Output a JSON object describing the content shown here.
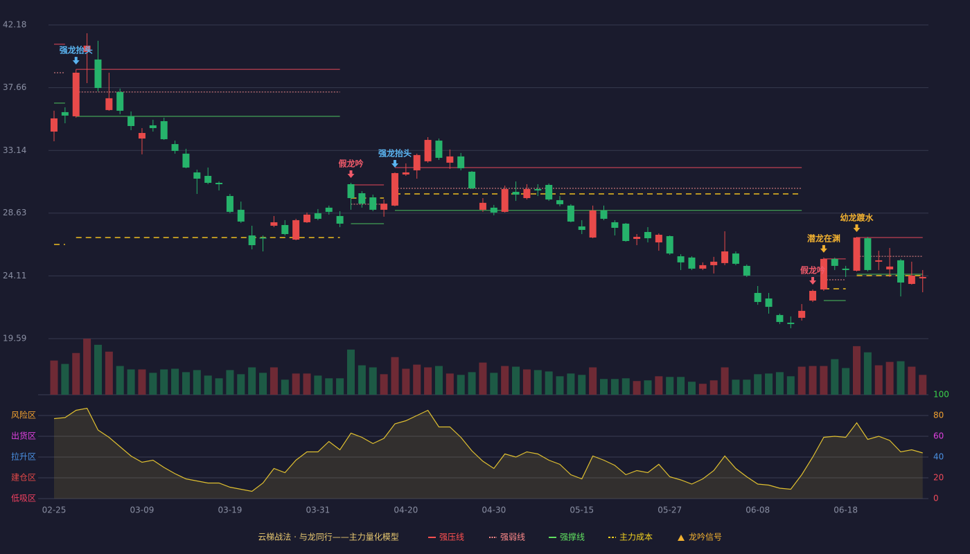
{
  "chart_data": {
    "type": "candlestick",
    "categories": [
      "02-25",
      null,
      null,
      null,
      null,
      null,
      null,
      null,
      "03-09",
      null,
      null,
      null,
      null,
      null,
      null,
      null,
      "03-19",
      null,
      null,
      null,
      null,
      null,
      null,
      null,
      "03-31",
      null,
      null,
      null,
      null,
      null,
      null,
      null,
      "04-20",
      null,
      null,
      null,
      null,
      null,
      null,
      null,
      "04-30",
      null,
      null,
      null,
      null,
      null,
      null,
      null,
      "05-15",
      null,
      null,
      null,
      null,
      null,
      null,
      null,
      "05-27",
      null,
      null,
      null,
      null,
      null,
      null,
      null,
      "06-08",
      null,
      null,
      null,
      null,
      null,
      null,
      null,
      "06-18",
      null,
      null,
      null,
      null,
      null,
      null,
      null
    ],
    "open": [
      34.5,
      35.9,
      35.6,
      40.24,
      39.69,
      36.05,
      37.35,
      35.6,
      34.0,
      34.95,
      35.25,
      33.6,
      32.91,
      31.56,
      31.31,
      30.81,
      29.86,
      28.87,
      27.02,
      26.87,
      27.72,
      27.77,
      26.72,
      27.97,
      28.62,
      29.02,
      28.42,
      30.71,
      30.06,
      29.76,
      28.87,
      29.17,
      31.41,
      31.71,
      32.36,
      33.85,
      32.26,
      32.71,
      31.61,
      28.87,
      29.02,
      28.72,
      30.16,
      29.71,
      30.36,
      30.66,
      29.56,
      29.17,
      27.67,
      26.87,
      28.82,
      27.97,
      27.87,
      26.77,
      27.27,
      26.52,
      26.97,
      25.52,
      25.43,
      24.63,
      24.88,
      25.03,
      25.72,
      24.83,
      22.88,
      22.48,
      21.29,
      20.74,
      21.09,
      22.33,
      23.13,
      25.33,
      24.63,
      24.48,
      26.82,
      25.13,
      24.58,
      25.23,
      23.53,
      23.93
    ],
    "high": [
      36.0,
      36.25,
      38.98,
      41.58,
      41.04,
      38.74,
      37.6,
      35.95,
      34.75,
      35.35,
      35.5,
      33.85,
      33.26,
      31.76,
      31.91,
      30.91,
      30.01,
      29.46,
      27.72,
      27.02,
      28.42,
      28.12,
      28.22,
      28.67,
      28.92,
      29.17,
      28.77,
      30.81,
      30.21,
      29.96,
      29.61,
      31.56,
      32.21,
      32.91,
      34.1,
      34.0,
      33.21,
      32.96,
      31.66,
      29.71,
      29.22,
      30.61,
      30.91,
      30.71,
      30.71,
      30.76,
      29.86,
      29.27,
      28.12,
      29.17,
      29.17,
      28.12,
      27.92,
      27.12,
      27.62,
      27.17,
      27.02,
      25.67,
      25.52,
      25.08,
      25.48,
      27.32,
      25.87,
      24.93,
      23.38,
      22.88,
      21.39,
      21.19,
      22.08,
      23.13,
      25.43,
      25.43,
      24.83,
      26.92,
      26.92,
      25.92,
      26.12,
      25.33,
      25.13,
      24.53
    ],
    "low": [
      33.8,
      35.1,
      35.5,
      37.99,
      37.4,
      36.0,
      35.75,
      34.6,
      32.86,
      34.5,
      33.9,
      32.91,
      31.86,
      30.01,
      30.71,
      30.26,
      28.62,
      27.92,
      26.02,
      25.87,
      27.62,
      27.02,
      26.67,
      27.92,
      28.12,
      28.52,
      27.62,
      28.87,
      29.02,
      28.77,
      28.37,
      29.12,
      31.31,
      31.11,
      32.26,
      32.46,
      31.81,
      31.71,
      30.36,
      28.72,
      28.47,
      28.67,
      29.51,
      29.61,
      29.86,
      29.51,
      29.12,
      27.97,
      27.12,
      26.82,
      28.12,
      27.02,
      26.57,
      26.32,
      26.52,
      25.92,
      25.62,
      24.53,
      24.53,
      24.53,
      24.28,
      24.88,
      24.88,
      24.03,
      22.03,
      21.39,
      20.64,
      20.34,
      20.89,
      22.23,
      23.03,
      24.53,
      24.03,
      24.43,
      24.43,
      24.53,
      24.03,
      22.63,
      23.48,
      22.93
    ],
    "close": [
      35.45,
      35.65,
      38.74,
      40.69,
      37.64,
      36.9,
      36.0,
      34.9,
      34.4,
      34.75,
      33.95,
      33.11,
      31.91,
      31.11,
      30.81,
      30.71,
      28.72,
      28.02,
      26.32,
      26.82,
      27.97,
      27.12,
      28.12,
      28.52,
      28.22,
      28.72,
      27.87,
      29.71,
      29.31,
      28.87,
      29.31,
      31.51,
      31.56,
      32.81,
      33.9,
      32.61,
      32.71,
      31.86,
      30.41,
      29.37,
      28.67,
      30.36,
      29.96,
      30.36,
      30.26,
      29.61,
      29.27,
      28.02,
      27.42,
      28.82,
      28.22,
      27.57,
      26.62,
      26.92,
      26.82,
      27.07,
      25.72,
      25.08,
      24.63,
      24.88,
      25.13,
      25.87,
      24.98,
      24.13,
      22.23,
      21.88,
      20.79,
      20.64,
      21.59,
      23.03,
      25.33,
      24.83,
      24.53,
      26.87,
      24.53,
      25.23,
      24.78,
      23.63,
      24.13,
      24.03
    ],
    "ylim": [
      19.59,
      42.18
    ],
    "yticks": [
      19.59,
      24.11,
      28.63,
      33.14,
      37.66,
      42.18
    ],
    "grid": true,
    "up_color": "#e84a4a",
    "down_color": "#26b36b",
    "volume": [
      50,
      45,
      61,
      82,
      73,
      63,
      42,
      37,
      37,
      32,
      37,
      38,
      33,
      36,
      28,
      24,
      36,
      30,
      40,
      32,
      40,
      22,
      31,
      31,
      28,
      24,
      24,
      66,
      43,
      40,
      30,
      55,
      38,
      44,
      40,
      42,
      31,
      29,
      33,
      47,
      32,
      42,
      41,
      37,
      36,
      34,
      27,
      31,
      29,
      40,
      23,
      23,
      24,
      20,
      21,
      27,
      26,
      26,
      19,
      16,
      21,
      40,
      22,
      22,
      30,
      31,
      33,
      27,
      41,
      42,
      42,
      52,
      39,
      71,
      62,
      43,
      48,
      49,
      41,
      29
    ],
    "volume_up_color": "#6e2a35",
    "volume_down_color": "#1d5a45",
    "levels": [
      {
        "start": 0,
        "end": 1,
        "resistance": 40.79,
        "weak": 38.74,
        "support": 36.55,
        "cost": 26.37
      },
      {
        "start": 2,
        "end": 26,
        "resistance": 38.98,
        "weak": 37.35,
        "support": 35.6,
        "cost": 26.87
      },
      {
        "start": 27,
        "end": 30,
        "resistance": 30.66,
        "weak": 29.27,
        "support": 27.87,
        "cost": 29.71
      },
      {
        "start": 31,
        "end": 68,
        "resistance": 31.91,
        "weak": 30.41,
        "support": 28.82,
        "cost": 30.01
      },
      {
        "start": 70,
        "end": 72,
        "resistance": 25.33,
        "weak": 23.83,
        "support": 22.33,
        "cost": 23.18
      },
      {
        "start": 73,
        "end": 79,
        "resistance": 26.87,
        "weak": 25.52,
        "support": 24.23,
        "cost": 24.13
      }
    ],
    "level_colors": {
      "resistance": "#e84a5a",
      "weak": "#f08a8a",
      "support": "#4cc35e",
      "cost": "#f0c020"
    },
    "signals": [
      {
        "index": 2,
        "label": "强龙抬头",
        "color": "#5ab4f0"
      },
      {
        "index": 27,
        "label": "假龙吟",
        "color": "#f05a6a"
      },
      {
        "index": 31,
        "label": "强龙抬头",
        "color": "#5ab4f0"
      },
      {
        "index": 69,
        "label": "假龙吟",
        "color": "#f05a6a"
      },
      {
        "index": 70,
        "label": "潜龙在渊",
        "color": "#f0b030"
      },
      {
        "index": 73,
        "label": "幼龙踱水",
        "color": "#f0b030"
      }
    ],
    "oscillator": {
      "values": [
        77,
        78,
        85,
        87,
        66,
        59,
        50,
        41,
        35,
        37,
        30,
        24,
        19,
        17,
        15,
        15,
        11,
        9,
        7,
        15,
        29,
        25,
        37,
        45,
        45,
        55,
        47,
        63,
        59,
        53,
        58,
        72,
        75,
        80,
        85,
        69,
        69,
        59,
        46,
        36,
        29,
        43,
        40,
        45,
        43,
        37,
        33,
        23,
        19,
        41,
        37,
        32,
        23,
        27,
        25,
        33,
        21,
        18,
        14,
        19,
        27,
        41,
        29,
        21,
        14,
        13,
        10,
        9,
        23,
        40,
        59,
        60,
        59,
        73,
        57,
        60,
        56,
        45,
        47,
        44
      ],
      "ylim": [
        0,
        100
      ],
      "ticks": [
        0,
        20,
        40,
        60,
        80,
        100
      ],
      "tick_colors": [
        "#f04a5a",
        "#f04a5a",
        "#4a90e2",
        "#e040e0",
        "#f0a030",
        "#3ad04a"
      ],
      "zones": [
        {
          "value": 80,
          "label": "风险区",
          "color": "#f0a030"
        },
        {
          "value": 60,
          "label": "出货区",
          "color": "#e040e0"
        },
        {
          "value": 40,
          "label": "拉升区",
          "color": "#4a90e2"
        },
        {
          "value": 20,
          "label": "建仓区",
          "color": "#e04848"
        },
        {
          "value": 0,
          "label": "低吸区",
          "color": "#f04060"
        }
      ],
      "color": "#e0c030"
    },
    "legend": {
      "title": "云梯战法 · 与龙同行——主力量化模型",
      "title_color": "#e8c870",
      "items": [
        {
          "label": "强压线",
          "color": "#ff5050",
          "style": "solid"
        },
        {
          "label": "强弱线",
          "color": "#ff8a8a",
          "style": "dotted"
        },
        {
          "label": "强撑线",
          "color": "#60e060",
          "style": "solid"
        },
        {
          "label": "主力成本",
          "color": "#f0d020",
          "style": "dashed"
        },
        {
          "label": "龙吟信号",
          "color": "#f0b030",
          "style": "triangle"
        }
      ]
    }
  }
}
